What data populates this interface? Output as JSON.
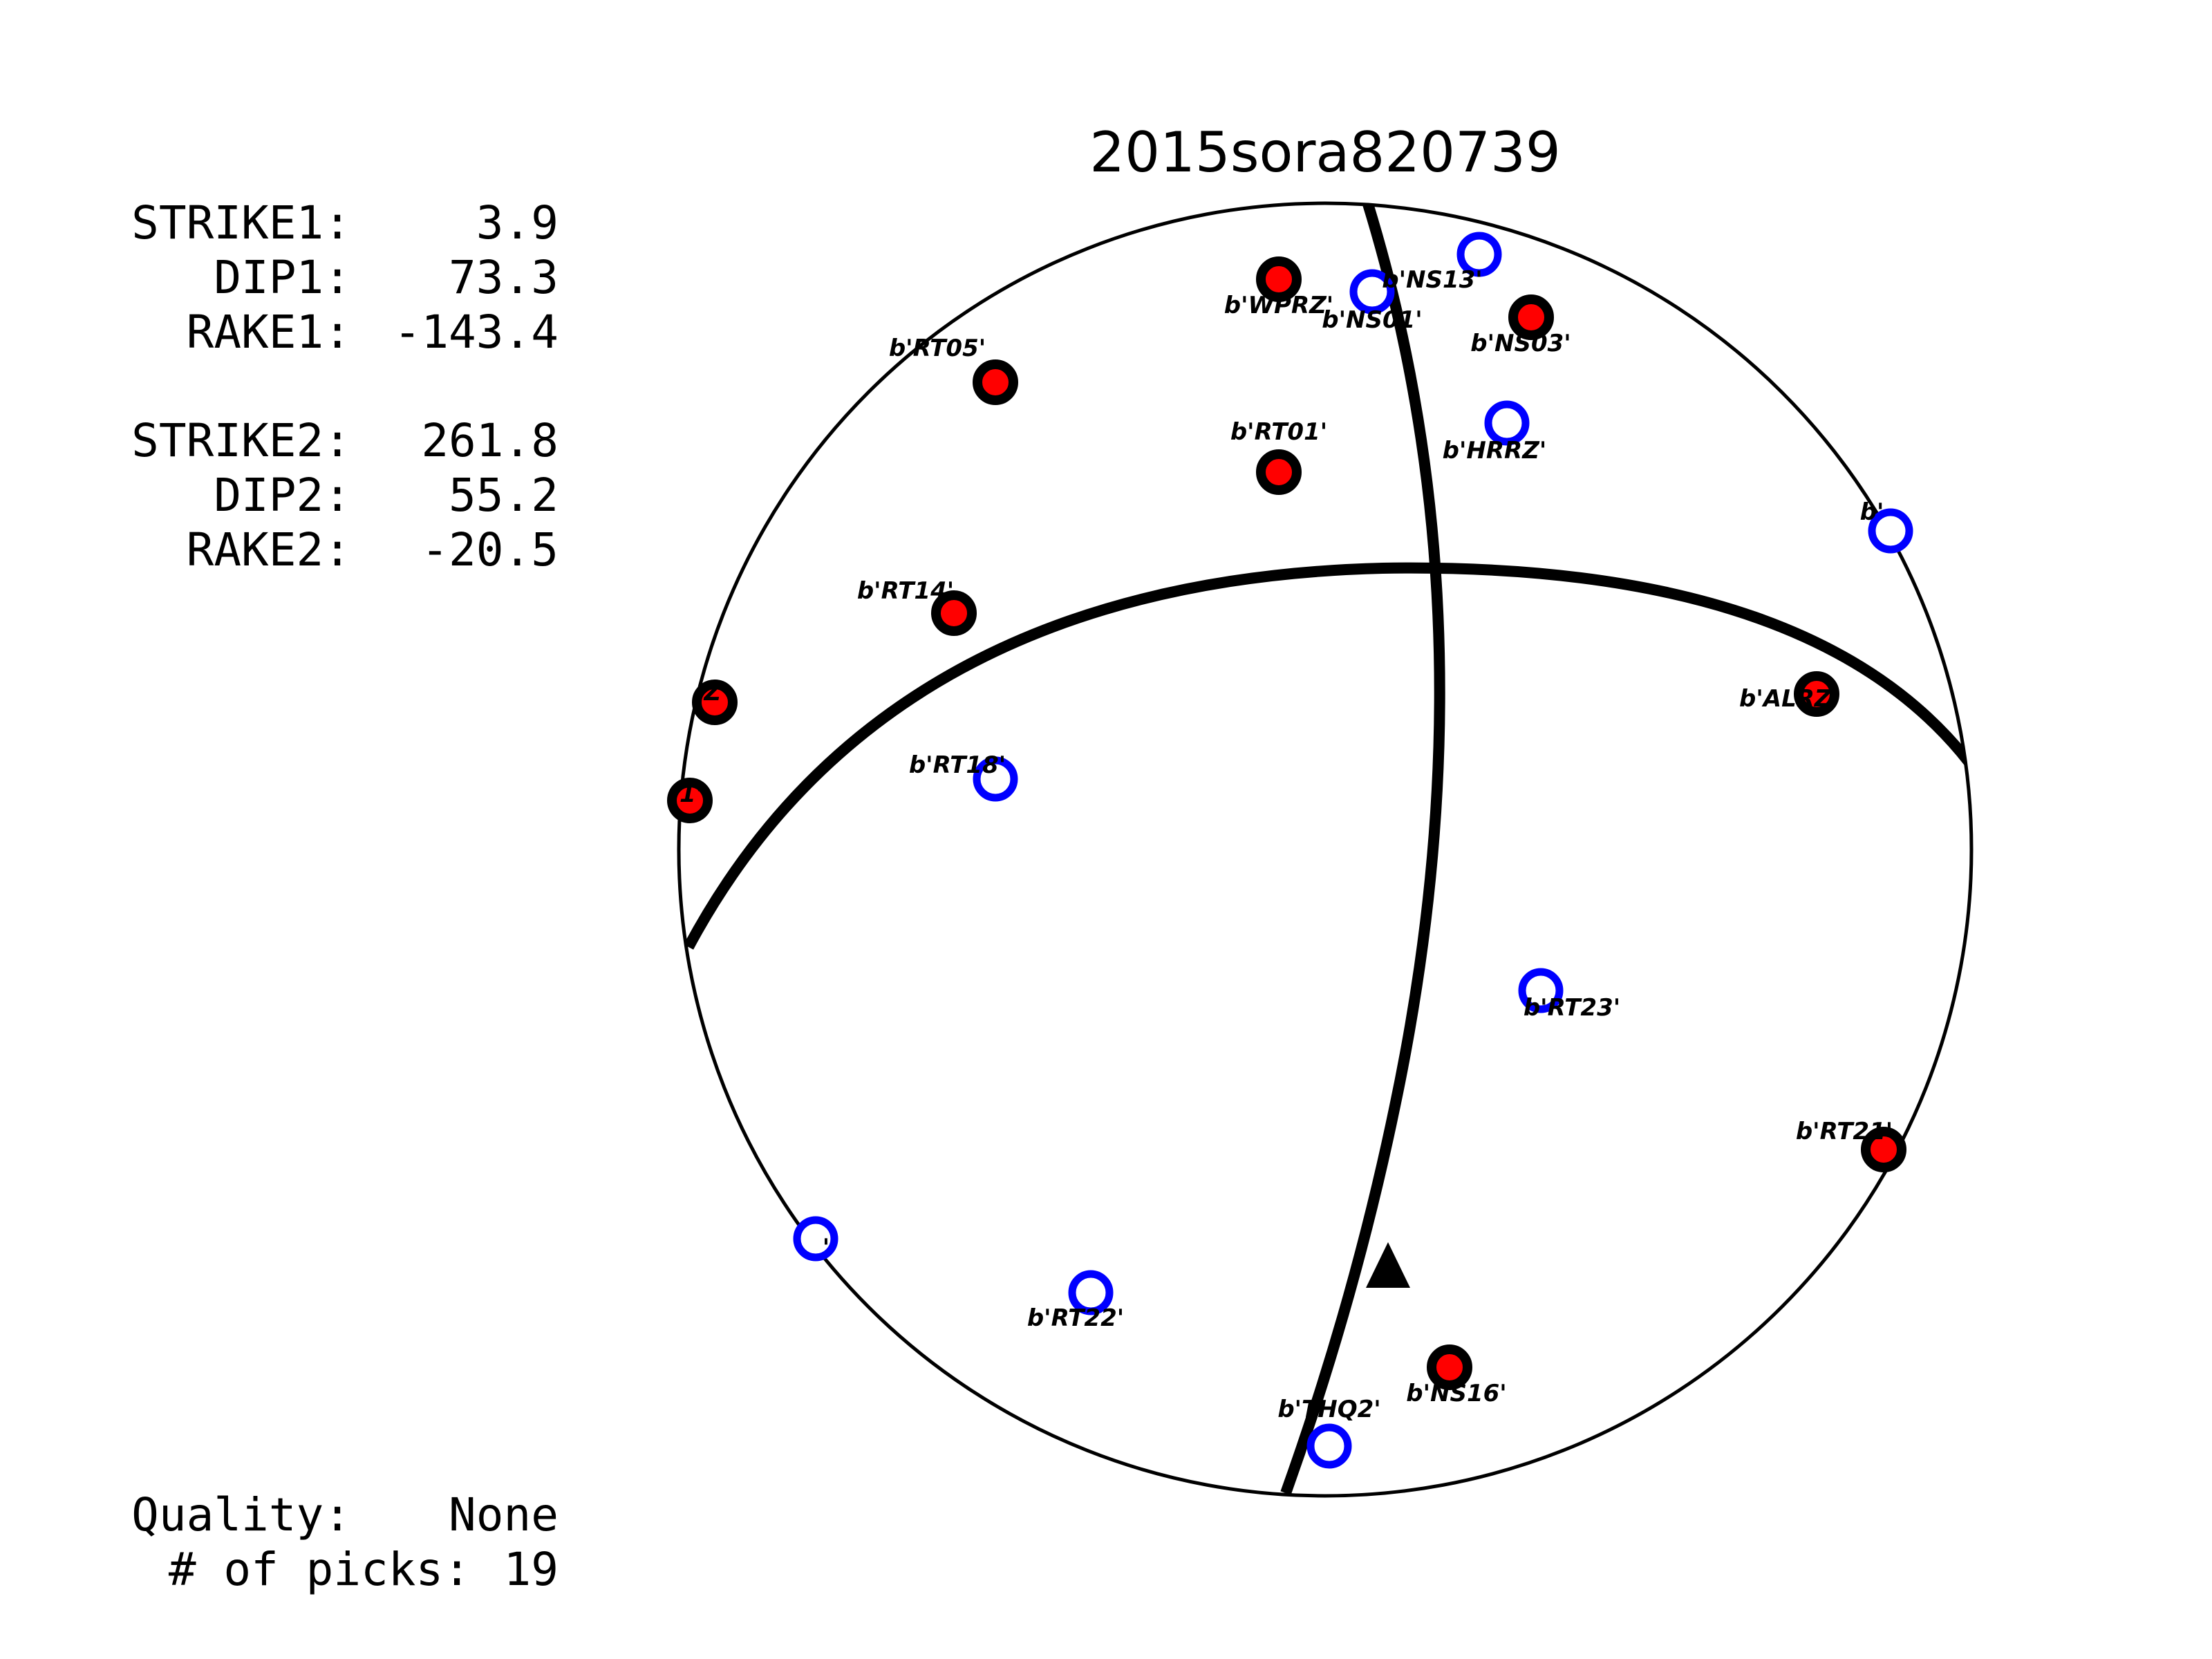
{
  "title": "2015sora820739",
  "solution": {
    "strike1_label": "STRIKE1:",
    "strike1": "3.9",
    "dip1_label": "DIP1:",
    "dip1": "73.3",
    "rake1_label": "RAKE1:",
    "rake1": "-143.4",
    "strike2_label": "STRIKE2:",
    "strike2": "261.8",
    "dip2_label": "DIP2:",
    "dip2": "55.2",
    "rake2_label": "RAKE2:",
    "rake2": "-20.5"
  },
  "quality_label": "Quality:",
  "quality": "None",
  "picks_label": "# of picks:",
  "picks": "19",
  "colors": {
    "compression_fill": "#ff0000",
    "compression_edge": "#000000",
    "dilatation_edge": "#0000ff",
    "plane_line": "#000000"
  },
  "stations": [
    {
      "label": "b'WPRZ'",
      "polarity": "compression"
    },
    {
      "label": "b'NS01'",
      "polarity": "dilatation"
    },
    {
      "label": "b'NS13'",
      "polarity": "dilatation"
    },
    {
      "label": "b'NS03'",
      "polarity": "compression"
    },
    {
      "label": "b'RT05'",
      "polarity": "compression"
    },
    {
      "label": "b'RT01'",
      "polarity": "compression"
    },
    {
      "label": "b'HRRZ'",
      "polarity": "dilatation"
    },
    {
      "label": "b'",
      "polarity": "dilatation"
    },
    {
      "label": "b'RT14'",
      "polarity": "compression"
    },
    {
      "label": "b'ALRZ'",
      "polarity": "compression"
    },
    {
      "label": "Z'",
      "polarity": "compression"
    },
    {
      "label": "1'",
      "polarity": "compression"
    },
    {
      "label": "b'RT18'",
      "polarity": "dilatation"
    },
    {
      "label": "b'RT23'",
      "polarity": "dilatation"
    },
    {
      "label": "b'RT21'",
      "polarity": "compression"
    },
    {
      "label": "'",
      "polarity": "dilatation"
    },
    {
      "label": "b'RT22'",
      "polarity": "dilatation"
    },
    {
      "label": "b'NS16'",
      "polarity": "compression"
    },
    {
      "label": "b'THQ2'",
      "polarity": "dilatation"
    }
  ]
}
